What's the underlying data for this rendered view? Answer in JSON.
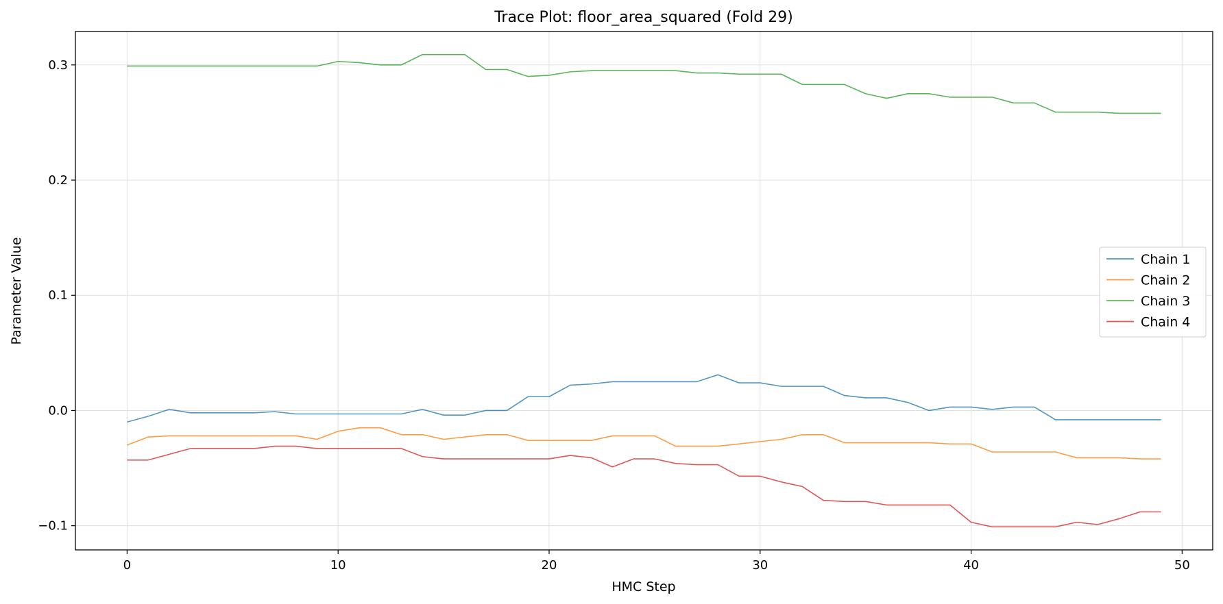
{
  "chart_data": {
    "type": "line",
    "title": "Trace Plot: floor_area_squared (Fold 29)",
    "xlabel": "HMC Step",
    "ylabel": "Parameter Value",
    "xlim": [
      -2.45,
      51.45
    ],
    "ylim": [
      -0.121,
      0.329
    ],
    "xticks": [
      0,
      10,
      20,
      30,
      40,
      50
    ],
    "yticks": [
      -0.1,
      0.0,
      0.1,
      0.2,
      0.3
    ],
    "ytick_labels": [
      "−0.1",
      "0.0",
      "0.1",
      "0.2",
      "0.3"
    ],
    "grid": true,
    "legend_position": "center-right",
    "x": [
      0,
      1,
      2,
      3,
      4,
      5,
      6,
      7,
      8,
      9,
      10,
      11,
      12,
      13,
      14,
      15,
      16,
      17,
      18,
      19,
      20,
      21,
      22,
      23,
      24,
      25,
      26,
      27,
      28,
      29,
      30,
      31,
      32,
      33,
      34,
      35,
      36,
      37,
      38,
      39,
      40,
      41,
      42,
      43,
      44,
      45,
      46,
      47,
      48,
      49
    ],
    "series": [
      {
        "name": "Chain 1",
        "color": "#1f77b4",
        "values": [
          -0.01,
          -0.005,
          0.001,
          -0.002,
          -0.002,
          -0.002,
          -0.002,
          -0.001,
          -0.003,
          -0.003,
          -0.003,
          -0.003,
          -0.003,
          -0.003,
          0.001,
          -0.004,
          -0.004,
          0.0,
          0.0,
          0.012,
          0.012,
          0.022,
          0.023,
          0.025,
          0.025,
          0.025,
          0.025,
          0.025,
          0.031,
          0.024,
          0.024,
          0.021,
          0.021,
          0.021,
          0.013,
          0.011,
          0.011,
          0.007,
          0.0,
          0.003,
          0.003,
          0.001,
          0.003,
          0.003,
          -0.008,
          -0.008,
          -0.008,
          -0.008,
          -0.008,
          -0.008
        ]
      },
      {
        "name": "Chain 2",
        "color": "#ff7f0e",
        "values": [
          -0.03,
          -0.023,
          -0.022,
          -0.022,
          -0.022,
          -0.022,
          -0.022,
          -0.022,
          -0.022,
          -0.025,
          -0.018,
          -0.015,
          -0.015,
          -0.021,
          -0.021,
          -0.025,
          -0.023,
          -0.021,
          -0.021,
          -0.026,
          -0.026,
          -0.026,
          -0.026,
          -0.022,
          -0.022,
          -0.022,
          -0.031,
          -0.031,
          -0.031,
          -0.029,
          -0.027,
          -0.025,
          -0.021,
          -0.021,
          -0.028,
          -0.028,
          -0.028,
          -0.028,
          -0.028,
          -0.029,
          -0.029,
          -0.036,
          -0.036,
          -0.036,
          -0.036,
          -0.041,
          -0.041,
          -0.041,
          -0.042,
          -0.042
        ]
      },
      {
        "name": "Chain 3",
        "color": "#2ca02c",
        "values": [
          0.299,
          0.299,
          0.299,
          0.299,
          0.299,
          0.299,
          0.299,
          0.299,
          0.299,
          0.299,
          0.303,
          0.302,
          0.3,
          0.3,
          0.309,
          0.309,
          0.309,
          0.296,
          0.296,
          0.29,
          0.291,
          0.294,
          0.295,
          0.295,
          0.295,
          0.295,
          0.295,
          0.293,
          0.293,
          0.292,
          0.292,
          0.292,
          0.283,
          0.283,
          0.283,
          0.275,
          0.271,
          0.275,
          0.275,
          0.272,
          0.272,
          0.272,
          0.267,
          0.267,
          0.259,
          0.259,
          0.259,
          0.258,
          0.258,
          0.258
        ]
      },
      {
        "name": "Chain 4",
        "color": "#d62728",
        "values": [
          -0.043,
          -0.043,
          -0.038,
          -0.033,
          -0.033,
          -0.033,
          -0.033,
          -0.031,
          -0.031,
          -0.033,
          -0.033,
          -0.033,
          -0.033,
          -0.033,
          -0.04,
          -0.042,
          -0.042,
          -0.042,
          -0.042,
          -0.042,
          -0.042,
          -0.039,
          -0.041,
          -0.049,
          -0.042,
          -0.042,
          -0.046,
          -0.047,
          -0.047,
          -0.057,
          -0.057,
          -0.062,
          -0.066,
          -0.078,
          -0.079,
          -0.079,
          -0.082,
          -0.082,
          -0.082,
          -0.082,
          -0.097,
          -0.101,
          -0.101,
          -0.101,
          -0.101,
          -0.097,
          -0.099,
          -0.094,
          -0.088,
          -0.088
        ]
      }
    ]
  }
}
